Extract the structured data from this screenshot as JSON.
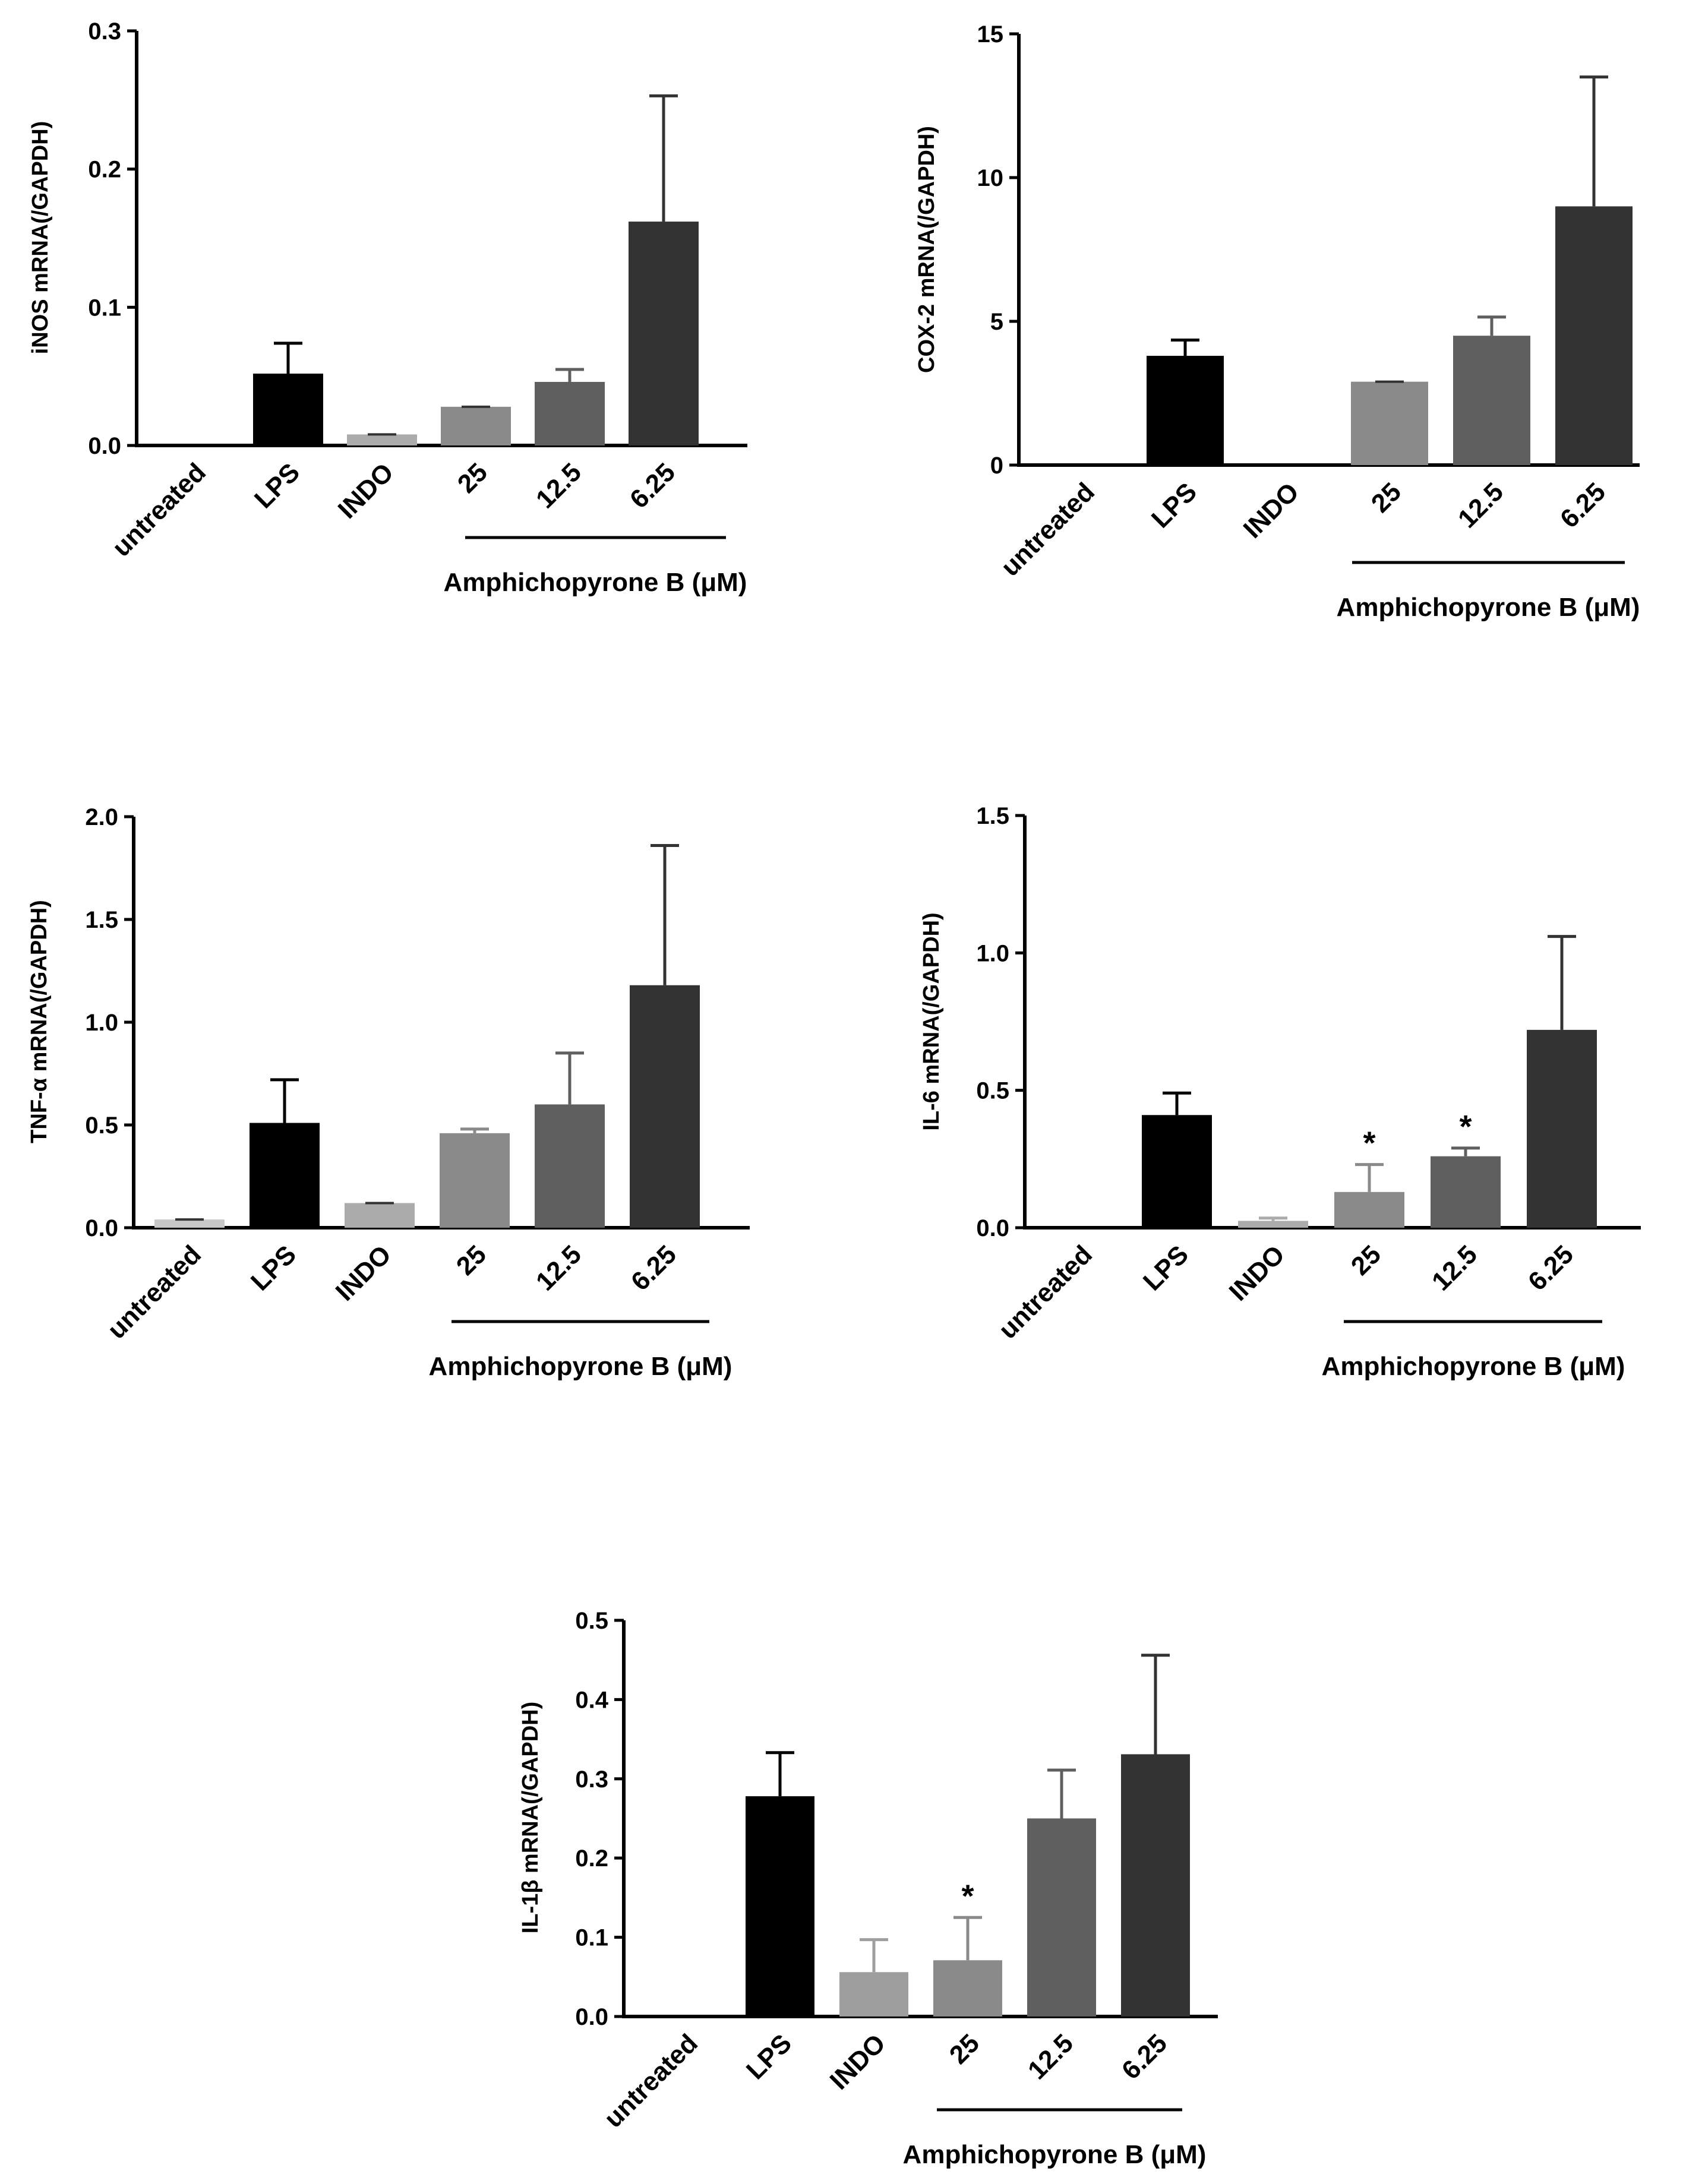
{
  "chart_data": [
    {
      "type": "bar",
      "ylabel": "iNOS mRNA(/GAPDH)",
      "ylim": [
        0,
        0.3
      ],
      "yticks": [
        "0.0",
        "0.1",
        "0.2",
        "0.3"
      ],
      "categories": [
        "untreated",
        "LPS",
        "INDO",
        "25",
        "12.5",
        "6.25"
      ],
      "values": [
        0.0,
        0.052,
        0.008,
        0.028,
        0.046,
        0.162
      ],
      "errors": [
        0.0,
        0.022,
        0.0,
        0.0,
        0.009,
        0.091
      ],
      "annotations": [
        "",
        "",
        "",
        "",
        "",
        ""
      ],
      "group_label": "Amphichopyrone B (μM)",
      "colors": [
        "#c8c8c8",
        "#000000",
        "#ababab",
        "#8a8a8a",
        "#5f5f5f",
        "#333333"
      ]
    },
    {
      "type": "bar",
      "ylabel": "COX-2 mRNA(/GAPDH)",
      "ylim": [
        0,
        15
      ],
      "yticks": [
        "0",
        "5",
        "10",
        "15"
      ],
      "categories": [
        "untreated",
        "LPS",
        "INDO",
        "25",
        "12.5",
        "6.25"
      ],
      "values": [
        0.0,
        3.8,
        0.0,
        2.9,
        4.5,
        9.0
      ],
      "errors": [
        0.0,
        0.55,
        0.0,
        0.0,
        0.65,
        4.5
      ],
      "annotations": [
        "",
        "",
        "",
        "",
        "",
        ""
      ],
      "group_label": "Amphichopyrone B (μM)",
      "colors": [
        "#c8c8c8",
        "#000000",
        "#ababab",
        "#8a8a8a",
        "#5f5f5f",
        "#333333"
      ]
    },
    {
      "type": "bar",
      "ylabel": "TNF-α mRNA(/GAPDH)",
      "ylim": [
        0,
        2.0
      ],
      "yticks": [
        "0.0",
        "0.5",
        "1.0",
        "1.5",
        "2.0"
      ],
      "categories": [
        "untreated",
        "LPS",
        "INDO",
        "25",
        "12.5",
        "6.25"
      ],
      "values": [
        0.04,
        0.51,
        0.12,
        0.46,
        0.6,
        1.18
      ],
      "errors": [
        0.0,
        0.21,
        0.0,
        0.02,
        0.25,
        0.68
      ],
      "annotations": [
        "",
        "",
        "",
        "",
        "",
        ""
      ],
      "group_label": "Amphichopyrone B (μM)",
      "colors": [
        "#c8c8c8",
        "#000000",
        "#ababab",
        "#8a8a8a",
        "#5f5f5f",
        "#333333"
      ]
    },
    {
      "type": "bar",
      "ylabel": "IL-6 mRNA(/GAPDH)",
      "ylim": [
        0,
        1.5
      ],
      "yticks": [
        "0.0",
        "0.5",
        "1.0",
        "1.5"
      ],
      "categories": [
        "untreated",
        "LPS",
        "INDO",
        "25",
        "12.5",
        "6.25"
      ],
      "values": [
        0.0,
        0.41,
        0.025,
        0.13,
        0.26,
        0.72
      ],
      "errors": [
        0.0,
        0.08,
        0.01,
        0.1,
        0.03,
        0.34
      ],
      "annotations": [
        "",
        "",
        "",
        "*",
        "*",
        ""
      ],
      "group_label": "Amphichopyrone B (μM)",
      "colors": [
        "#c8c8c8",
        "#000000",
        "#ababab",
        "#8a8a8a",
        "#5f5f5f",
        "#333333"
      ]
    },
    {
      "type": "bar",
      "ylabel": "IL-1β mRNA(/GAPDH)",
      "ylim": [
        0,
        0.5
      ],
      "yticks": [
        "0.0",
        "0.1",
        "0.2",
        "0.3",
        "0.4",
        "0.5"
      ],
      "categories": [
        "untreated",
        "LPS",
        "INDO",
        "25",
        "12.5",
        "6.25"
      ],
      "values": [
        0.0,
        0.278,
        0.056,
        0.071,
        0.25,
        0.331
      ],
      "errors": [
        0.0,
        0.055,
        0.041,
        0.054,
        0.061,
        0.125
      ],
      "annotations": [
        "",
        "",
        "",
        "*",
        "",
        ""
      ],
      "group_label": "Amphichopyrone B (μM)",
      "colors": [
        "#c8c8c8",
        "#000000",
        "#9e9e9e",
        "#8a8a8a",
        "#5f5f5f",
        "#333333"
      ]
    }
  ]
}
